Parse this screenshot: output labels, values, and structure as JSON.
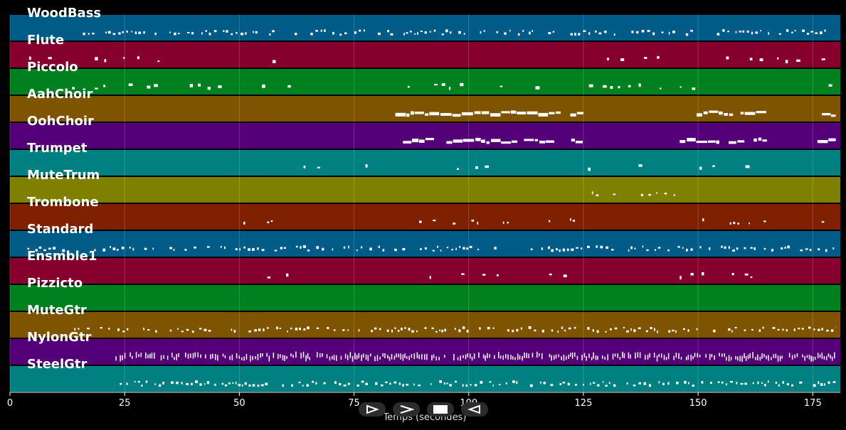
{
  "chart_data": {
    "type": "heatmap",
    "xlabel": "Temps (secondes)",
    "xlim": [
      0,
      181
    ],
    "x_ticks": [
      0,
      25,
      50,
      75,
      100,
      125,
      150,
      175
    ],
    "tracks": [
      {
        "name": "WoodBass",
        "color": "#005b86",
        "density": 0.55,
        "style": "small",
        "segments": [
          [
            14,
            180
          ]
        ]
      },
      {
        "name": "Flute",
        "color": "#86002e",
        "density": 0.35,
        "style": "mixed",
        "segments": [
          [
            2,
            62
          ],
          [
            104,
            145
          ],
          [
            149,
            180
          ]
        ]
      },
      {
        "name": "Piccolo",
        "color": "#00801e",
        "density": 0.35,
        "style": "mixed",
        "segments": [
          [
            2,
            62
          ],
          [
            84,
            165
          ],
          [
            170,
            180
          ]
        ]
      },
      {
        "name": "AahChoir",
        "color": "#7f5400",
        "density": 0.85,
        "style": "long",
        "segments": [
          [
            84,
            125
          ],
          [
            146,
            165
          ],
          [
            176,
            180
          ]
        ]
      },
      {
        "name": "OohChoir",
        "color": "#540078",
        "density": 0.85,
        "style": "long",
        "segments": [
          [
            84,
            125
          ],
          [
            146,
            165
          ],
          [
            176,
            180
          ]
        ]
      },
      {
        "name": "Trumpet",
        "color": "#008080",
        "density": 0.35,
        "style": "mixed",
        "segments": [
          [
            64,
            105
          ],
          [
            126,
            165
          ],
          [
            176,
            180
          ]
        ]
      },
      {
        "name": "MuteTrum",
        "color": "#808000",
        "density": 0.2,
        "style": "small",
        "segments": [
          [
            126,
            145
          ]
        ]
      },
      {
        "name": "Trombone",
        "color": "#7f2000",
        "density": 0.12,
        "style": "small",
        "segments": [
          [
            47,
            64
          ],
          [
            88,
            126
          ],
          [
            150,
            166
          ],
          [
            176,
            180
          ]
        ]
      },
      {
        "name": "Standard",
        "color": "#005b86",
        "density": 0.6,
        "style": "small",
        "segments": [
          [
            2,
            180
          ]
        ]
      },
      {
        "name": "Ensmble1",
        "color": "#86002e",
        "density": 0.45,
        "style": "mixed",
        "segments": [
          [
            44,
            64
          ],
          [
            84,
            126
          ],
          [
            146,
            165
          ],
          [
            176,
            180
          ]
        ]
      },
      {
        "name": "Pizzicto",
        "color": "#00801e",
        "density": 0.1,
        "style": "small",
        "segments": [
          [
            165,
            167
          ]
        ]
      },
      {
        "name": "MuteGtr",
        "color": "#7f5400",
        "density": 0.6,
        "style": "small",
        "segments": [
          [
            14,
            180
          ]
        ]
      },
      {
        "name": "NylonGtr",
        "color": "#540078",
        "density": 0.8,
        "style": "dense",
        "segments": [
          [
            23,
            180
          ]
        ]
      },
      {
        "name": "SteelGtr",
        "color": "#008080",
        "density": 0.75,
        "style": "small",
        "segments": [
          [
            23,
            180
          ]
        ]
      }
    ]
  },
  "controls": [
    {
      "name": "play-button",
      "glyph": "play-icon"
    },
    {
      "name": "forward-button",
      "glyph": "chevron-right-icon"
    },
    {
      "name": "stop-button",
      "glyph": "stop-icon"
    },
    {
      "name": "rewind-button",
      "glyph": "rewind-icon"
    }
  ]
}
